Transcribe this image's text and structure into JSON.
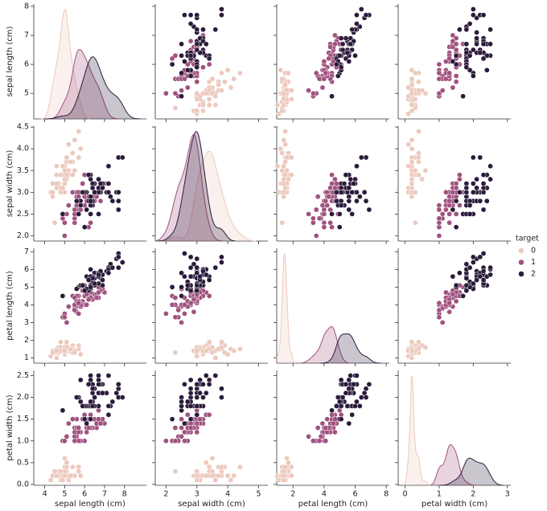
{
  "chart_data": {
    "type": "pairplot",
    "legend_title": "target",
    "variables": [
      {
        "label": "sepal length (cm)",
        "xlim": [
          3.45,
          9.1
        ],
        "xticks": [
          4,
          5,
          6,
          7,
          8
        ],
        "ylim": [
          4.12,
          8.08
        ],
        "yticks": [
          4,
          5,
          6,
          7,
          8
        ]
      },
      {
        "label": "sepal width (cm)",
        "xlim": [
          1.65,
          5.3
        ],
        "xticks": [
          2,
          3,
          4,
          5
        ],
        "ylim": [
          1.88,
          4.52
        ],
        "yticks": [
          {
            "value": 2,
            "label": "2.0"
          },
          2.5,
          {
            "value": 3,
            "label": "3.0"
          },
          3.5,
          {
            "value": 4,
            "label": "4.0"
          },
          4.5
        ]
      },
      {
        "label": "petal length (cm)",
        "xlim": [
          0.95,
          8.2
        ],
        "xticks": [
          2,
          4,
          6,
          8
        ],
        "ylim": [
          0.705,
          7.195
        ],
        "yticks": [
          1,
          2,
          3,
          4,
          5,
          6,
          7
        ]
      },
      {
        "label": "petal width (cm)",
        "xlim": [
          -0.2,
          3.1
        ],
        "xticks": [
          0,
          1,
          2,
          3
        ],
        "ylim": [
          -0.02,
          2.62
        ],
        "yticks": [
          {
            "value": 0,
            "label": "0.0"
          },
          0.5,
          {
            "value": 1,
            "label": "1.0"
          },
          1.5,
          {
            "value": 2,
            "label": "2.0"
          },
          2.5
        ]
      }
    ],
    "series": [
      {
        "name": "0",
        "color": "#ecc9bd",
        "values": [
          [
            5.1,
            3.5,
            1.4,
            0.2
          ],
          [
            4.9,
            3.0,
            1.4,
            0.2
          ],
          [
            4.7,
            3.2,
            1.3,
            0.2
          ],
          [
            4.6,
            3.1,
            1.5,
            0.2
          ],
          [
            5.0,
            3.6,
            1.4,
            0.2
          ],
          [
            5.4,
            3.9,
            1.7,
            0.4
          ],
          [
            4.6,
            3.4,
            1.4,
            0.3
          ],
          [
            5.0,
            3.4,
            1.5,
            0.2
          ],
          [
            4.4,
            2.9,
            1.4,
            0.2
          ],
          [
            4.9,
            3.1,
            1.5,
            0.1
          ],
          [
            5.4,
            3.7,
            1.5,
            0.2
          ],
          [
            4.8,
            3.4,
            1.6,
            0.2
          ],
          [
            4.8,
            3.0,
            1.4,
            0.1
          ],
          [
            4.3,
            3.0,
            1.1,
            0.1
          ],
          [
            5.8,
            4.0,
            1.2,
            0.2
          ],
          [
            5.7,
            4.4,
            1.5,
            0.4
          ],
          [
            5.4,
            3.9,
            1.3,
            0.4
          ],
          [
            5.1,
            3.5,
            1.4,
            0.3
          ],
          [
            5.7,
            3.8,
            1.7,
            0.3
          ],
          [
            5.1,
            3.8,
            1.5,
            0.3
          ],
          [
            5.4,
            3.4,
            1.7,
            0.2
          ],
          [
            5.1,
            3.7,
            1.5,
            0.4
          ],
          [
            4.6,
            3.6,
            1.0,
            0.2
          ],
          [
            5.1,
            3.3,
            1.7,
            0.5
          ],
          [
            4.8,
            3.4,
            1.9,
            0.2
          ],
          [
            5.0,
            3.0,
            1.6,
            0.2
          ],
          [
            5.0,
            3.4,
            1.6,
            0.4
          ],
          [
            5.2,
            3.5,
            1.5,
            0.2
          ],
          [
            5.2,
            3.4,
            1.4,
            0.2
          ],
          [
            4.7,
            3.2,
            1.6,
            0.2
          ],
          [
            4.8,
            3.1,
            1.6,
            0.2
          ],
          [
            5.4,
            3.4,
            1.5,
            0.4
          ],
          [
            5.2,
            4.1,
            1.5,
            0.1
          ],
          [
            5.5,
            4.2,
            1.4,
            0.2
          ],
          [
            4.9,
            3.1,
            1.5,
            0.2
          ],
          [
            5.0,
            3.2,
            1.2,
            0.2
          ],
          [
            5.5,
            3.5,
            1.3,
            0.2
          ],
          [
            4.9,
            3.6,
            1.4,
            0.1
          ],
          [
            4.4,
            3.0,
            1.3,
            0.2
          ],
          [
            5.1,
            3.4,
            1.5,
            0.2
          ],
          [
            5.0,
            3.5,
            1.3,
            0.3
          ],
          [
            4.5,
            2.3,
            1.3,
            0.3
          ],
          [
            4.4,
            3.2,
            1.3,
            0.2
          ],
          [
            5.0,
            3.5,
            1.6,
            0.6
          ],
          [
            5.1,
            3.8,
            1.9,
            0.4
          ],
          [
            4.8,
            3.0,
            1.4,
            0.3
          ],
          [
            5.1,
            3.8,
            1.6,
            0.2
          ],
          [
            4.6,
            3.2,
            1.4,
            0.2
          ],
          [
            5.3,
            3.7,
            1.5,
            0.2
          ],
          [
            5.0,
            3.3,
            1.4,
            0.2
          ]
        ]
      },
      {
        "name": "1",
        "color": "#a0527f",
        "values": [
          [
            7.0,
            3.2,
            4.7,
            1.4
          ],
          [
            6.4,
            3.2,
            4.5,
            1.5
          ],
          [
            6.9,
            3.1,
            4.9,
            1.5
          ],
          [
            5.5,
            2.3,
            4.0,
            1.3
          ],
          [
            6.5,
            2.8,
            4.6,
            1.5
          ],
          [
            5.7,
            2.8,
            4.5,
            1.3
          ],
          [
            6.3,
            3.3,
            4.7,
            1.6
          ],
          [
            4.9,
            2.4,
            3.3,
            1.0
          ],
          [
            6.6,
            2.9,
            4.6,
            1.3
          ],
          [
            5.2,
            2.7,
            3.9,
            1.4
          ],
          [
            5.0,
            2.0,
            3.5,
            1.0
          ],
          [
            5.9,
            3.0,
            4.2,
            1.5
          ],
          [
            6.0,
            2.2,
            4.0,
            1.0
          ],
          [
            6.1,
            2.9,
            4.7,
            1.4
          ],
          [
            5.6,
            2.9,
            3.6,
            1.3
          ],
          [
            6.7,
            3.1,
            4.4,
            1.4
          ],
          [
            5.6,
            3.0,
            4.5,
            1.5
          ],
          [
            5.8,
            2.7,
            4.1,
            1.0
          ],
          [
            6.2,
            2.2,
            4.5,
            1.5
          ],
          [
            5.6,
            2.5,
            3.9,
            1.1
          ],
          [
            5.9,
            3.2,
            4.8,
            1.8
          ],
          [
            6.1,
            2.8,
            4.0,
            1.3
          ],
          [
            6.3,
            2.5,
            4.9,
            1.5
          ],
          [
            6.1,
            2.8,
            4.7,
            1.2
          ],
          [
            6.4,
            2.9,
            4.3,
            1.3
          ],
          [
            6.6,
            3.0,
            4.4,
            1.4
          ],
          [
            6.8,
            2.8,
            4.8,
            1.4
          ],
          [
            6.7,
            3.0,
            5.0,
            1.7
          ],
          [
            6.0,
            2.9,
            4.5,
            1.5
          ],
          [
            5.7,
            2.6,
            3.5,
            1.0
          ],
          [
            5.5,
            2.4,
            3.8,
            1.1
          ],
          [
            5.5,
            2.4,
            3.7,
            1.0
          ],
          [
            5.8,
            2.7,
            3.9,
            1.2
          ],
          [
            6.0,
            2.7,
            5.1,
            1.6
          ],
          [
            5.4,
            3.0,
            4.5,
            1.5
          ],
          [
            6.0,
            3.4,
            4.5,
            1.6
          ],
          [
            6.7,
            3.1,
            4.7,
            1.5
          ],
          [
            6.3,
            2.3,
            4.4,
            1.3
          ],
          [
            5.6,
            3.0,
            4.1,
            1.3
          ],
          [
            5.5,
            2.5,
            4.0,
            1.3
          ],
          [
            5.5,
            2.6,
            4.4,
            1.2
          ],
          [
            6.1,
            3.0,
            4.6,
            1.4
          ],
          [
            5.8,
            2.6,
            4.0,
            1.2
          ],
          [
            5.0,
            2.3,
            3.3,
            1.0
          ],
          [
            5.6,
            2.7,
            4.2,
            1.3
          ],
          [
            5.7,
            3.0,
            4.2,
            1.2
          ],
          [
            5.7,
            2.9,
            4.2,
            1.3
          ],
          [
            6.2,
            2.9,
            4.3,
            1.3
          ],
          [
            5.1,
            2.5,
            3.0,
            1.1
          ],
          [
            5.7,
            2.8,
            4.1,
            1.3
          ]
        ]
      },
      {
        "name": "2",
        "color": "#2b1b3b",
        "values": [
          [
            6.3,
            3.3,
            6.0,
            2.5
          ],
          [
            5.8,
            2.7,
            5.1,
            1.9
          ],
          [
            7.1,
            3.0,
            5.9,
            2.1
          ],
          [
            6.3,
            2.9,
            5.6,
            1.8
          ],
          [
            6.5,
            3.0,
            5.8,
            2.2
          ],
          [
            7.6,
            3.0,
            6.6,
            2.1
          ],
          [
            4.9,
            2.5,
            4.5,
            1.7
          ],
          [
            7.3,
            2.9,
            6.3,
            1.8
          ],
          [
            6.7,
            2.5,
            5.8,
            1.8
          ],
          [
            7.2,
            3.6,
            6.1,
            2.5
          ],
          [
            6.5,
            3.2,
            5.1,
            2.0
          ],
          [
            6.4,
            2.7,
            5.3,
            1.9
          ],
          [
            6.8,
            3.0,
            5.5,
            2.1
          ],
          [
            5.7,
            2.5,
            5.0,
            2.0
          ],
          [
            5.8,
            2.8,
            5.1,
            2.4
          ],
          [
            6.4,
            3.2,
            5.3,
            2.3
          ],
          [
            6.5,
            3.0,
            5.5,
            1.8
          ],
          [
            7.7,
            3.8,
            6.7,
            2.2
          ],
          [
            7.7,
            2.6,
            6.9,
            2.3
          ],
          [
            6.0,
            2.2,
            5.0,
            1.5
          ],
          [
            6.9,
            3.2,
            5.7,
            2.3
          ],
          [
            5.6,
            2.8,
            4.9,
            2.0
          ],
          [
            7.7,
            2.8,
            6.7,
            2.0
          ],
          [
            6.3,
            2.7,
            4.9,
            1.8
          ],
          [
            6.7,
            3.3,
            5.7,
            2.1
          ],
          [
            7.2,
            3.2,
            6.0,
            1.8
          ],
          [
            6.2,
            2.8,
            4.8,
            1.8
          ],
          [
            6.1,
            3.0,
            4.9,
            1.8
          ],
          [
            6.4,
            2.8,
            5.6,
            2.1
          ],
          [
            7.2,
            3.0,
            5.8,
            1.6
          ],
          [
            7.4,
            2.8,
            6.1,
            1.9
          ],
          [
            7.9,
            3.8,
            6.4,
            2.0
          ],
          [
            6.4,
            2.8,
            5.6,
            2.2
          ],
          [
            6.3,
            2.8,
            5.1,
            1.5
          ],
          [
            6.1,
            2.6,
            5.6,
            1.4
          ],
          [
            7.7,
            3.0,
            6.1,
            2.3
          ],
          [
            6.3,
            3.4,
            5.6,
            2.4
          ],
          [
            6.4,
            3.1,
            5.5,
            1.8
          ],
          [
            6.0,
            3.0,
            4.8,
            1.8
          ],
          [
            6.9,
            3.1,
            5.4,
            2.1
          ],
          [
            6.7,
            3.1,
            5.6,
            2.4
          ],
          [
            6.9,
            3.1,
            5.1,
            2.3
          ],
          [
            5.8,
            2.7,
            5.1,
            1.9
          ],
          [
            6.8,
            3.2,
            5.9,
            2.3
          ],
          [
            6.7,
            3.3,
            5.7,
            2.5
          ],
          [
            6.7,
            3.0,
            5.2,
            2.3
          ],
          [
            6.3,
            2.5,
            5.0,
            1.9
          ],
          [
            6.5,
            3.0,
            5.2,
            2.0
          ],
          [
            6.2,
            3.4,
            5.4,
            2.3
          ],
          [
            5.9,
            3.0,
            5.1,
            1.8
          ]
        ]
      }
    ]
  }
}
